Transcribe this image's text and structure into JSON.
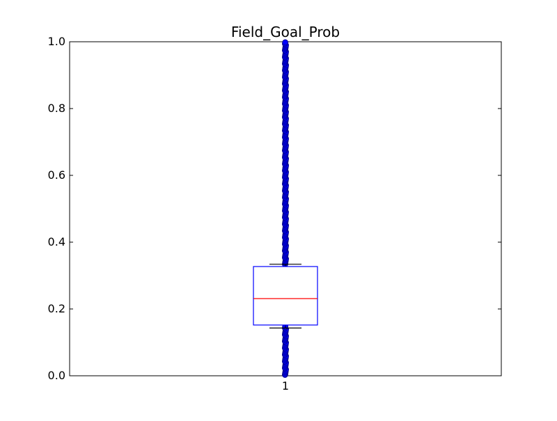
{
  "chart_data": {
    "type": "boxplot",
    "title": "Field_Goal_Prob",
    "xlabel": "",
    "ylabel": "",
    "categories": [
      "1"
    ],
    "ylim": [
      0,
      1.0
    ],
    "yticks": [
      "0.0",
      "0.2",
      "0.4",
      "0.6",
      "0.8",
      "1.0"
    ],
    "grid": false,
    "legend": "none",
    "box": {
      "whisker_low": 0.143,
      "q1": 0.152,
      "median": 0.231,
      "q3": 0.327,
      "whisker_high": 0.334
    },
    "outlier_ranges": [
      [
        0.003,
        0.15
      ],
      [
        0.334,
        0.998
      ]
    ],
    "colors": {
      "box": "#0000ff",
      "median": "#ff0000",
      "whisker": "#000000",
      "outlier_fill": "#0000ff",
      "outlier_edge": "#000080"
    }
  }
}
